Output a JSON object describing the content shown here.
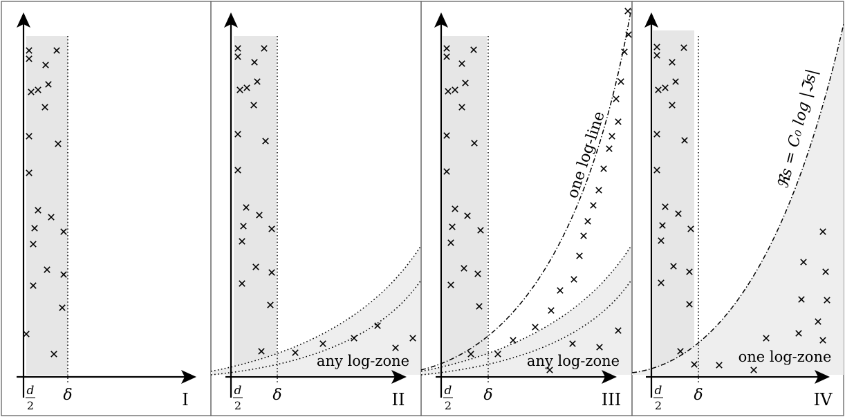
{
  "panels": [
    {
      "id": "I",
      "roman": "I",
      "tick_half_d_num": "d",
      "tick_half_d_den": "2",
      "tick_delta": "δ",
      "zone_label": "",
      "curve_label": ""
    },
    {
      "id": "II",
      "roman": "II",
      "tick_half_d_num": "d",
      "tick_half_d_den": "2",
      "tick_delta": "δ",
      "zone_label": "any log-zone",
      "curve_label": ""
    },
    {
      "id": "III",
      "roman": "III",
      "tick_half_d_num": "d",
      "tick_half_d_den": "2",
      "tick_delta": "δ",
      "zone_label": "any log-zone",
      "curve_label": "one log-line"
    },
    {
      "id": "IV",
      "roman": "IV",
      "tick_half_d_num": "d",
      "tick_half_d_den": "2",
      "tick_delta": "δ",
      "zone_label": "one log-zone",
      "curve_label": "ℜs = C₀ log |ℑs|"
    }
  ],
  "colors": {
    "strip": "#e6e6e6",
    "zone": "#eeeeee",
    "ink": "#000000",
    "border": "#555555"
  },
  "marker": "cross-icon"
}
